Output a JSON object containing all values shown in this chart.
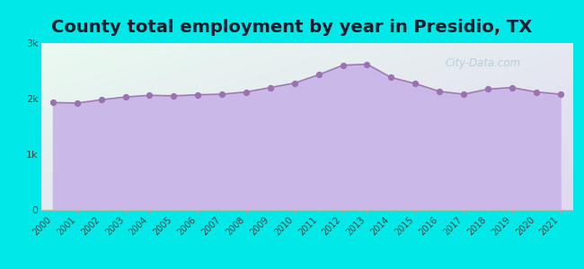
{
  "title": "County total employment by year in Presidio, TX",
  "years": [
    2000,
    2001,
    2002,
    2003,
    2004,
    2005,
    2006,
    2007,
    2008,
    2009,
    2010,
    2011,
    2012,
    2013,
    2014,
    2015,
    2016,
    2017,
    2018,
    2019,
    2020,
    2021
  ],
  "values": [
    1930,
    1920,
    1980,
    2030,
    2060,
    2050,
    2070,
    2080,
    2120,
    2200,
    2280,
    2430,
    2600,
    2620,
    2380,
    2270,
    2130,
    2080,
    2170,
    2200,
    2120,
    2080
  ],
  "line_color": "#a07ab5",
  "fill_color": "#c9b8e8",
  "fill_alpha": 1.0,
  "marker_color": "#9b72b0",
  "marker_size": 18,
  "background_outer": "#00e8e8",
  "ylim": [
    0,
    3000
  ],
  "yticks": [
    0,
    1000,
    2000,
    3000
  ],
  "ytick_labels": [
    "0",
    "1k",
    "2k",
    "3k"
  ],
  "title_fontsize": 14,
  "title_color": "#1a1a2e",
  "watermark_text": "City-Data.com",
  "watermark_color": "#90bbbb",
  "watermark_alpha": 0.55,
  "gradient_top_left": "#eafaf0",
  "gradient_bottom_right": "#e0d8f0"
}
